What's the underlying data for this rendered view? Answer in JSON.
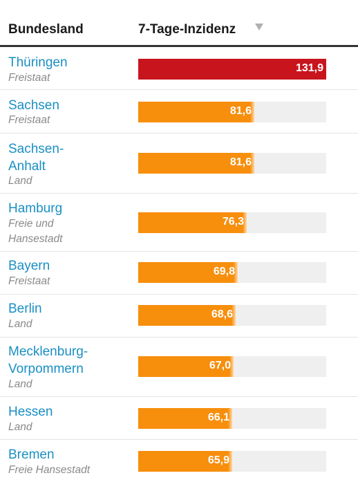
{
  "header": {
    "col_state": "Bundesland",
    "col_incidence": "7-Tage-Inzidenz",
    "sort_icon": "sort-desc-triangle"
  },
  "colors": {
    "link": "#1a8fc4",
    "bar_high": "#c8151d",
    "bar_default": "#f78e0c",
    "track": "#efefef"
  },
  "scale_max": 131.9,
  "rows": [
    {
      "name": "Thüringen",
      "sub": "Freistaat",
      "value": "131,9",
      "num": 131.9,
      "level": "high"
    },
    {
      "name": "Sachsen",
      "sub": "Freistaat",
      "value": "81,6",
      "num": 81.6,
      "level": "default"
    },
    {
      "name_lines": [
        "Sachsen-",
        "Anhalt"
      ],
      "sub": "Land",
      "value": "81,6",
      "num": 81.6,
      "level": "default"
    },
    {
      "name": "Hamburg",
      "sub_lines": [
        "Freie und",
        "Hansestadt"
      ],
      "value": "76,3",
      "num": 76.3,
      "level": "default"
    },
    {
      "name": "Bayern",
      "sub": "Freistaat",
      "value": "69,8",
      "num": 69.8,
      "level": "default"
    },
    {
      "name": "Berlin",
      "sub": "Land",
      "value": "68,6",
      "num": 68.6,
      "level": "default"
    },
    {
      "name_lines": [
        "Mecklenburg-",
        "Vorpommern"
      ],
      "sub": "Land",
      "value": "67,0",
      "num": 67.0,
      "level": "default"
    },
    {
      "name": "Hessen",
      "sub": "Land",
      "value": "66,1",
      "num": 66.1,
      "level": "default"
    },
    {
      "name": "Bremen",
      "sub": "Freie Hansestadt",
      "value": "65,9",
      "num": 65.9,
      "level": "default"
    }
  ]
}
